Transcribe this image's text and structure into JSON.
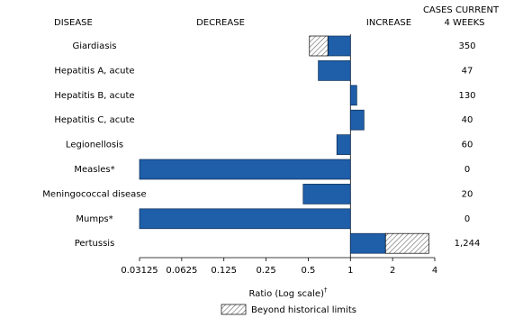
{
  "chart_data": {
    "type": "bar",
    "orientation": "horizontal",
    "headers": {
      "disease": "DISEASE",
      "decrease": "DECREASE",
      "increase": "INCREASE",
      "cases": [
        "CASES CURRENT",
        "4 WEEKS"
      ]
    },
    "categories": [
      "Giardiasis",
      "Hepatitis A, acute",
      "Hepatitis B, acute",
      "Hepatitis C, acute",
      "Legionellosis",
      "Measles*",
      "Meningococcal disease",
      "Mumps*",
      "Pertussis"
    ],
    "values": [
      0.51,
      0.59,
      1.11,
      1.25,
      0.8,
      0.03125,
      0.46,
      0.03125,
      3.63
    ],
    "historical_limit": [
      0.69,
      null,
      null,
      null,
      null,
      null,
      null,
      null,
      1.78
    ],
    "cases_current_4_weeks": [
      350,
      47,
      130,
      40,
      60,
      0,
      20,
      0,
      {
        "value": 1244,
        "label": "1,244"
      }
    ],
    "color": "#1f5ea8",
    "log_scale": true,
    "xlim": [
      0.03125,
      4
    ],
    "xticks": [
      0.03125,
      0.0625,
      0.125,
      0.25,
      0.5,
      1,
      2,
      4
    ],
    "xlabel": "Ratio (Log scale)",
    "xlabel_mark": "†",
    "legend": "Beyond historical limits"
  }
}
